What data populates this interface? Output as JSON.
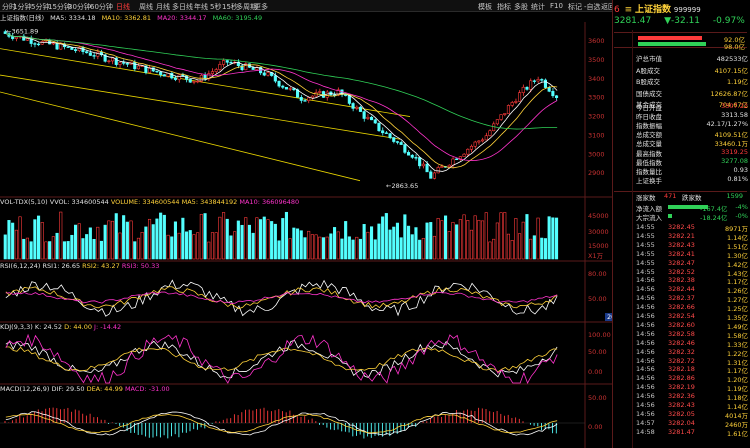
{
  "menu": {
    "intervals": [
      "分时",
      "1分钟",
      "5分钟",
      "15分钟",
      "30分钟",
      "60分钟",
      "日线",
      "周线",
      "月线",
      "多日线",
      "年线",
      "5秒",
      "15秒",
      "多周期",
      "更多"
    ],
    "active": "日线",
    "right_items": [
      "模板",
      "指标",
      "多股",
      "统计",
      "F10",
      "标记",
      "-自选",
      "返回"
    ]
  },
  "quote": {
    "code_prefix": "6",
    "name": "上证指数",
    "code": "999999",
    "price": "3281.47",
    "change": "▼-32.11",
    "pct": "-0.97%",
    "bar1_value": "92.0亿",
    "bar2_value": "98.0亿"
  },
  "market_stats": [
    {
      "k": "沪总市值",
      "v": "482533亿",
      "c": "wht"
    },
    {
      "k": "A股成交",
      "v": "4107.15亿",
      "c": "yel"
    },
    {
      "k": "B股成交",
      "v": "1.19亿",
      "c": "yel"
    },
    {
      "k": "国债成交",
      "v": "12626.87亿",
      "c": "yel"
    },
    {
      "k": "基金成交",
      "v": "704.67亿",
      "c": "yel"
    },
    {
      "k": "今日开盘",
      "v": "3307.22",
      "c": "red"
    },
    {
      "k": "昨日收盘",
      "v": "3313.58",
      "c": "wht"
    },
    {
      "k": "指数振幅",
      "v": "42.17/1.27%",
      "c": "wht"
    },
    {
      "k": "总成交额",
      "v": "4109.51亿",
      "c": "yel"
    },
    {
      "k": "总成交量",
      "v": "33460.1万",
      "c": "yel"
    },
    {
      "k": "最高指数",
      "v": "3319.25",
      "c": "red"
    },
    {
      "k": "最低指数",
      "v": "3277.08",
      "c": "grn"
    },
    {
      "k": "指数量比",
      "v": "0.93",
      "c": "wht"
    },
    {
      "k": "上证换手",
      "v": "0.81%",
      "c": "wht"
    }
  ],
  "updown": {
    "up_label": "涨家数",
    "up": "471",
    "down_label": "跌家数",
    "down": "1599"
  },
  "flows": [
    {
      "k": "净流入额",
      "v": "-167.4亿",
      "p": "-4%"
    },
    {
      "k": "大宗流入",
      "v": "-18.24亿",
      "p": "-0%"
    }
  ],
  "ticks": [
    {
      "t": "14:55",
      "p": "3282.45",
      "q": "8971万"
    },
    {
      "t": "14:55",
      "p": "3282.21",
      "q": "1.14亿"
    },
    {
      "t": "14:55",
      "p": "3282.43",
      "q": "1.51亿"
    },
    {
      "t": "14:55",
      "p": "3282.41",
      "q": "1.30亿"
    },
    {
      "t": "14:55",
      "p": "3282.47",
      "q": "1.42亿"
    },
    {
      "t": "14:55",
      "p": "3282.52",
      "q": "1.43亿"
    },
    {
      "t": "14:56",
      "p": "3282.38",
      "q": "1.17亿"
    },
    {
      "t": "14:56",
      "p": "3282.44",
      "q": "1.26亿"
    },
    {
      "t": "14:56",
      "p": "3282.37",
      "q": "1.27亿"
    },
    {
      "t": "14:56",
      "p": "3282.66",
      "q": "1.25亿"
    },
    {
      "t": "14:56",
      "p": "3282.54",
      "q": "1.35亿"
    },
    {
      "t": "14:56",
      "p": "3282.60",
      "q": "1.49亿"
    },
    {
      "t": "14:56",
      "p": "3282.58",
      "q": "1.58亿"
    },
    {
      "t": "14:56",
      "p": "3282.46",
      "q": "1.33亿"
    },
    {
      "t": "14:56",
      "p": "3282.32",
      "q": "1.22亿"
    },
    {
      "t": "14:56",
      "p": "3282.72",
      "q": "1.31亿"
    },
    {
      "t": "14:56",
      "p": "3282.18",
      "q": "1.17亿"
    },
    {
      "t": "14:56",
      "p": "3282.86",
      "q": "1.20亿"
    },
    {
      "t": "14:56",
      "p": "3282.19",
      "q": "1.19亿"
    },
    {
      "t": "14:56",
      "p": "3282.36",
      "q": "1.18亿"
    },
    {
      "t": "14:56",
      "p": "3282.43",
      "q": "1.14亿"
    },
    {
      "t": "14:56",
      "p": "3282.05",
      "q": "4014万"
    },
    {
      "t": "14:57",
      "p": "3282.04",
      "q": "2460万"
    },
    {
      "t": "14:58",
      "p": "3281.47",
      "q": "1.61亿"
    }
  ],
  "main_legend": {
    "name": "上证指数(日线)",
    "ma5": "MA5: 3334.18",
    "ma10": "MA10: 3362.81",
    "ma20": "MA20: 3344.17",
    "ma60": "MA60: 3195.49"
  },
  "main_axis": [
    "3600",
    "3500",
    "3400",
    "3300",
    "3200",
    "3100",
    "3000",
    "2900"
  ],
  "annotations": {
    "high": "3651.89",
    "low": "2863.65"
  },
  "vol_legend": {
    "name": "VOL-TDX(5,10)",
    "vvol": "VVOL: 334600544",
    "volume": "VOLUME: 334600544",
    "ma5": "MA5: 343844192",
    "ma10": "MA10: 366096480"
  },
  "vol_axis": [
    "45000",
    "30000",
    "15000"
  ],
  "vol_unit": "X1万",
  "rsi_legend": {
    "name": "RSI(6,12,24)",
    "rsi1": "RSI1: 26.65",
    "rsi2": "RSI2: 43.27",
    "rsi3": "RSI3: 50.33"
  },
  "rsi_axis": [
    "80.00",
    "50.00"
  ],
  "rsi_badge": "20.6",
  "kdj_legend": {
    "name": "KDJ(9,3,3)",
    "k": "K: 24.52",
    "d": "D: 44.00",
    "j": "J: -14.42"
  },
  "kdj_axis": [
    "100.00",
    "50.00",
    "0.00"
  ],
  "macd_legend": {
    "name": "MACD(12,26,9)",
    "dif": "DIF: 29.50",
    "dea": "DEA: 44.99",
    "macd": "MACD: -31.00"
  },
  "macd_axis": [
    "50.00",
    "0.00"
  ],
  "colors": {
    "up": "#ff3b3b",
    "down": "#54ffff",
    "bg": "#000000",
    "ma5": "#ffffff",
    "ma10": "#ffd23a",
    "ma20": "#ff33cc",
    "ma60": "#30d158",
    "channel": "#e6d200"
  }
}
